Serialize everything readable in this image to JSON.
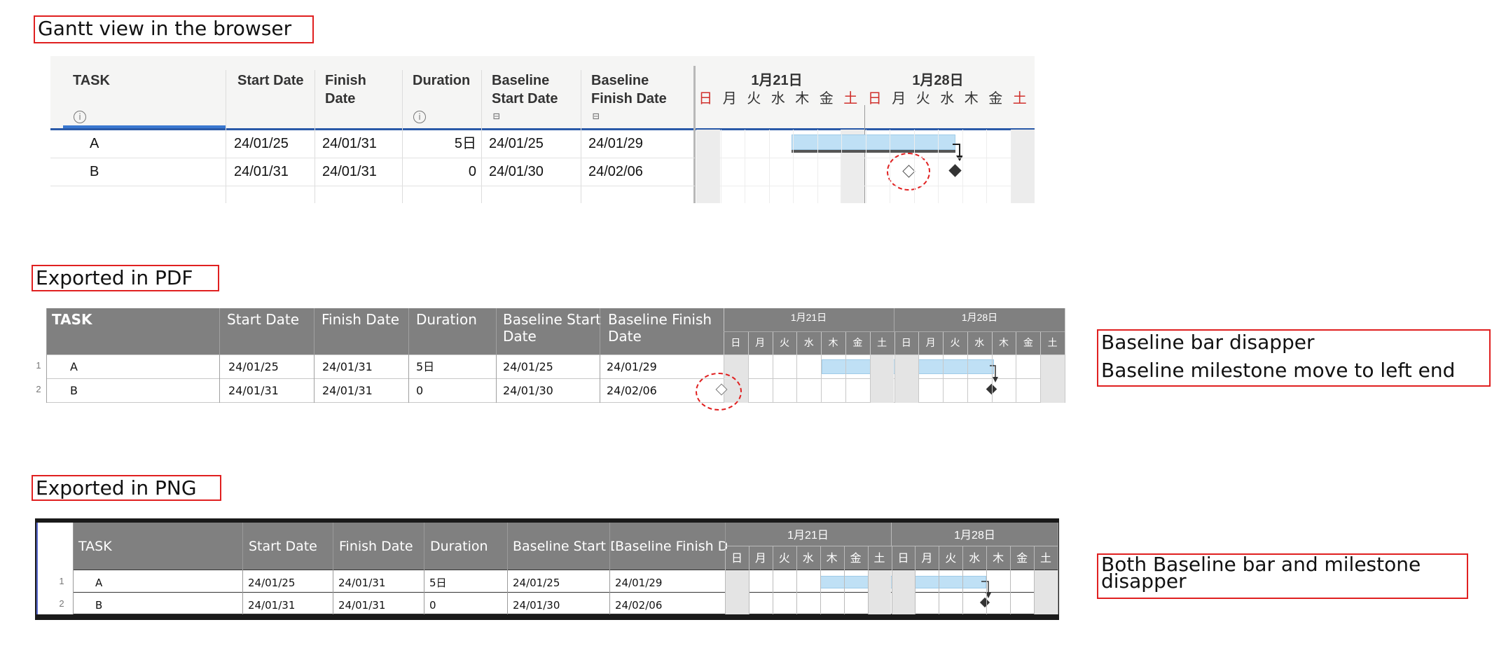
{
  "labels": {
    "browser": "Gantt view in the browser",
    "pdf": "Exported in PDF",
    "png": "Exported in PNG"
  },
  "notes": {
    "pdf_line1": "Baseline bar disapper",
    "pdf_line2": "Baseline milestone move to left end",
    "png": "Both Baseline bar and milestone disapper"
  },
  "browser": {
    "columns": {
      "task": "TASK",
      "start": "Start Date",
      "finish": "Finish Date",
      "duration": "Duration",
      "baseline_start": "Baseline Start Date",
      "baseline_finish": "Baseline Finish Date"
    },
    "weeks": [
      "1月21日",
      "1月28日"
    ],
    "days": [
      "日",
      "月",
      "火",
      "水",
      "木",
      "金",
      "土",
      "日",
      "月",
      "火",
      "水",
      "木",
      "金",
      "土"
    ],
    "rows": [
      {
        "task": "A",
        "start": "24/01/25",
        "finish": "24/01/31",
        "duration": "5日",
        "baseline_start": "24/01/25",
        "baseline_finish": "24/01/29"
      },
      {
        "task": "B",
        "start": "24/01/31",
        "finish": "24/01/31",
        "duration": "0",
        "baseline_start": "24/01/30",
        "baseline_finish": "24/02/06"
      }
    ]
  },
  "pdf": {
    "columns": {
      "task": "TASK",
      "start": "Start Date",
      "finish": "Finish Date",
      "duration": "Duration",
      "baseline_start": "Baseline Start Date",
      "baseline_finish": "Baseline Finish Date"
    },
    "weeks": [
      "1月21日",
      "1月28日"
    ],
    "days": [
      "日",
      "月",
      "火",
      "水",
      "木",
      "金",
      "土",
      "日",
      "月",
      "火",
      "水",
      "木",
      "金",
      "土"
    ],
    "row_numbers": [
      "1",
      "2"
    ],
    "rows": [
      {
        "task": "A",
        "start": "24/01/25",
        "finish": "24/01/31",
        "duration": "5日",
        "baseline_start": "24/01/25",
        "baseline_finish": "24/01/29"
      },
      {
        "task": "B",
        "start": "24/01/31",
        "finish": "24/01/31",
        "duration": "0",
        "baseline_start": "24/01/30",
        "baseline_finish": "24/02/06"
      }
    ]
  },
  "png": {
    "columns": {
      "task": "TASK",
      "start": "Start Date",
      "finish": "Finish Date",
      "duration": "Duration",
      "baseline_start": "Baseline Start D",
      "baseline_finish": "Baseline Finish D"
    },
    "weeks": [
      "1月21日",
      "1月28日"
    ],
    "days": [
      "日",
      "月",
      "火",
      "水",
      "木",
      "金",
      "土",
      "日",
      "月",
      "火",
      "水",
      "木",
      "金",
      "土"
    ],
    "row_numbers": [
      "1",
      "2"
    ],
    "rows": [
      {
        "task": "A",
        "start": "24/01/25",
        "finish": "24/01/31",
        "duration": "5日",
        "baseline_start": "24/01/25",
        "baseline_finish": "24/01/29"
      },
      {
        "task": "B",
        "start": "24/01/31",
        "finish": "24/01/31",
        "duration": "0",
        "baseline_start": "24/01/30",
        "baseline_finish": "24/02/06"
      }
    ]
  },
  "colors": {
    "annotation_red": "#e02020",
    "weekend_red": "#d0302c",
    "bar_blue": "#bfe0f5",
    "header_gray": "#808080",
    "header_accent": "#2a5aa8"
  },
  "icons": [
    "info-icon",
    "baseline-icon",
    "milestone-diamond-icon",
    "dependency-arrow-icon"
  ]
}
